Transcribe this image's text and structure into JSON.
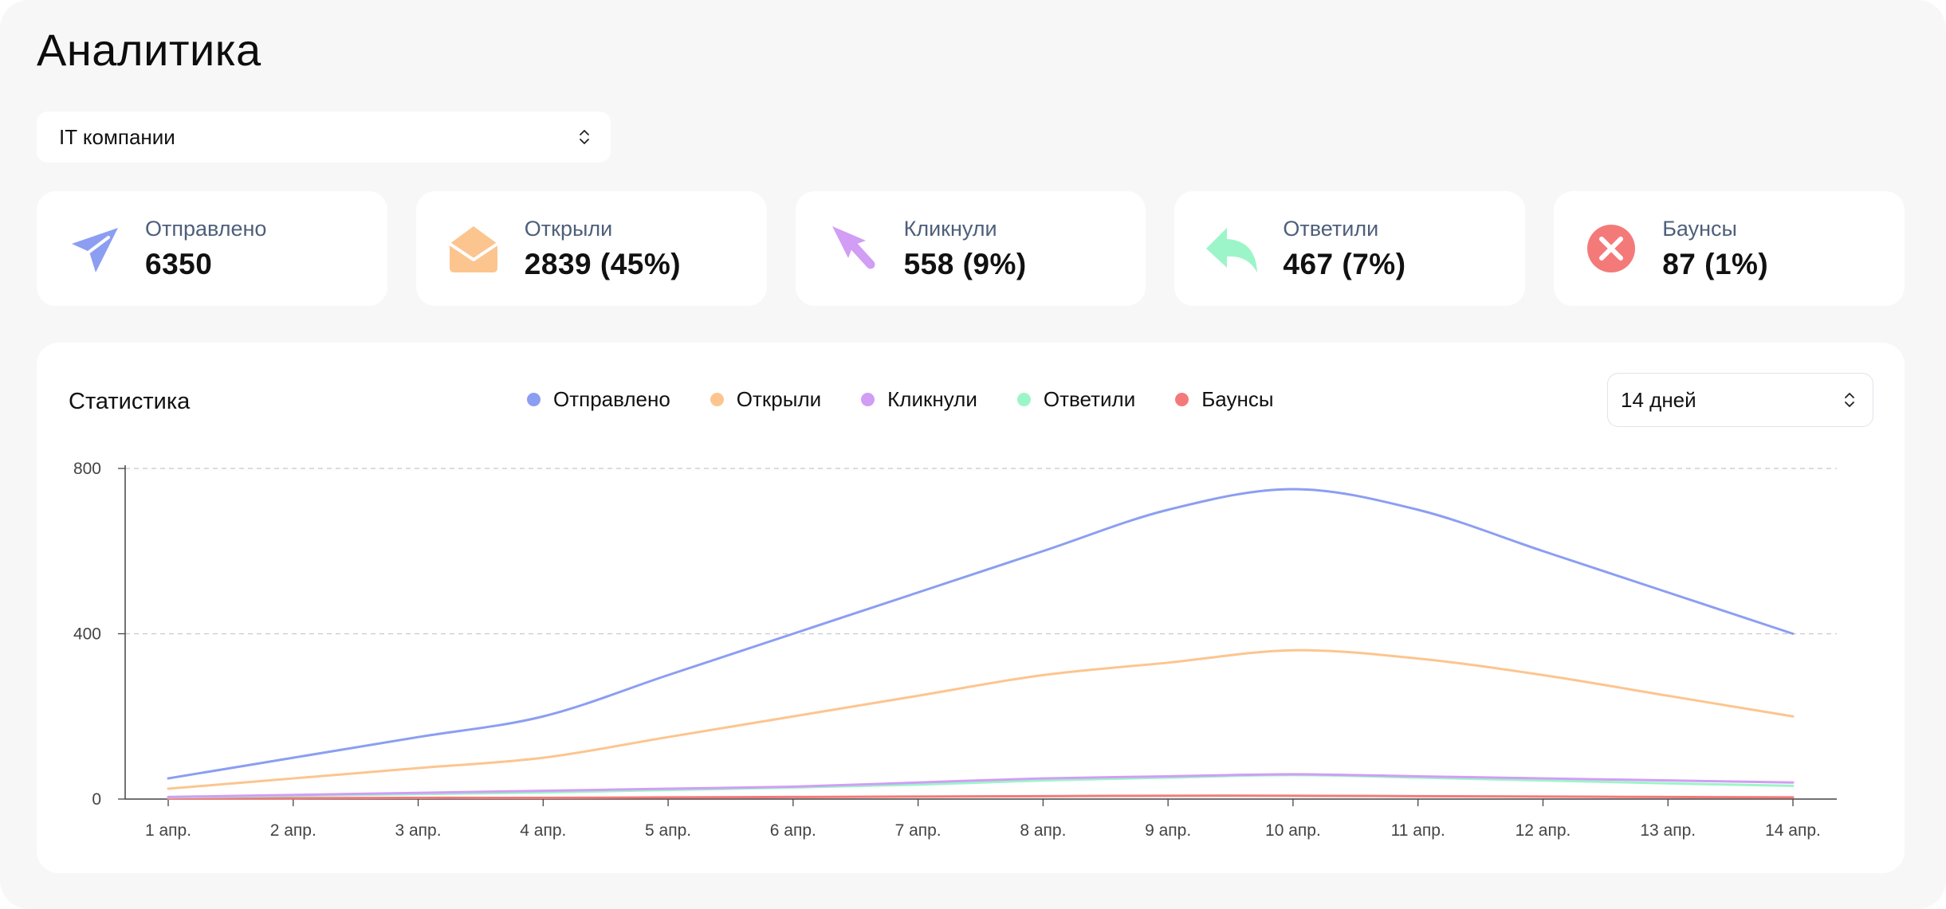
{
  "page": {
    "title": "Аналитика"
  },
  "segment_select": {
    "value": "IT компании"
  },
  "stats": [
    {
      "id": "sent",
      "label": "Отправлено",
      "value": "6350",
      "icon": "paper-plane-icon",
      "color": "#8c9ef2"
    },
    {
      "id": "opened",
      "label": "Открыли",
      "value": "2839 (45%)",
      "icon": "open-envelope-icon",
      "color": "#fcc58f"
    },
    {
      "id": "clicked",
      "label": "Кликнули",
      "value": "558 (9%)",
      "icon": "cursor-arrow-icon",
      "color": "#d19df5"
    },
    {
      "id": "replied",
      "label": "Ответили",
      "value": "467 (7%)",
      "icon": "reply-arrow-icon",
      "color": "#9cf5c8"
    },
    {
      "id": "bounced",
      "label": "Баунсы",
      "value": "87 (1%)",
      "icon": "close-circle-icon",
      "color": "#f47a7a"
    }
  ],
  "statistics": {
    "title": "Статистика",
    "period_select": {
      "value": "14 дней"
    }
  },
  "chart_data": {
    "type": "line",
    "title": "Статистика",
    "xlabel": "",
    "ylabel": "",
    "ylim": [
      0,
      800
    ],
    "yticks": [
      0,
      400,
      800
    ],
    "grid": true,
    "legend": "top",
    "categories": [
      "1 апр.",
      "2 апр.",
      "3 апр.",
      "4 апр.",
      "5 апр.",
      "6 апр.",
      "7 апр.",
      "8 апр.",
      "9 апр.",
      "10 апр.",
      "11 апр.",
      "12 апр.",
      "13 апр.",
      "14 апр."
    ],
    "series": [
      {
        "name": "Отправлено",
        "color": "#8c9ef2",
        "values": [
          50,
          100,
          150,
          200,
          300,
          400,
          500,
          600,
          700,
          750,
          700,
          600,
          500,
          400
        ]
      },
      {
        "name": "Открыли",
        "color": "#fcc58f",
        "values": [
          25,
          50,
          75,
          100,
          150,
          200,
          250,
          300,
          330,
          360,
          340,
          300,
          250,
          200
        ]
      },
      {
        "name": "Кликнули",
        "color": "#d19df5",
        "values": [
          5,
          10,
          15,
          20,
          25,
          30,
          40,
          50,
          55,
          60,
          55,
          50,
          45,
          40
        ]
      },
      {
        "name": "Ответили",
        "color": "#9cf5c8",
        "values": [
          4,
          8,
          12,
          16,
          22,
          28,
          35,
          45,
          52,
          58,
          52,
          45,
          38,
          32
        ]
      },
      {
        "name": "Баунсы",
        "color": "#f47a7a",
        "values": [
          1,
          2,
          3,
          3,
          4,
          5,
          6,
          7,
          8,
          8,
          7,
          6,
          5,
          4
        ]
      }
    ]
  }
}
